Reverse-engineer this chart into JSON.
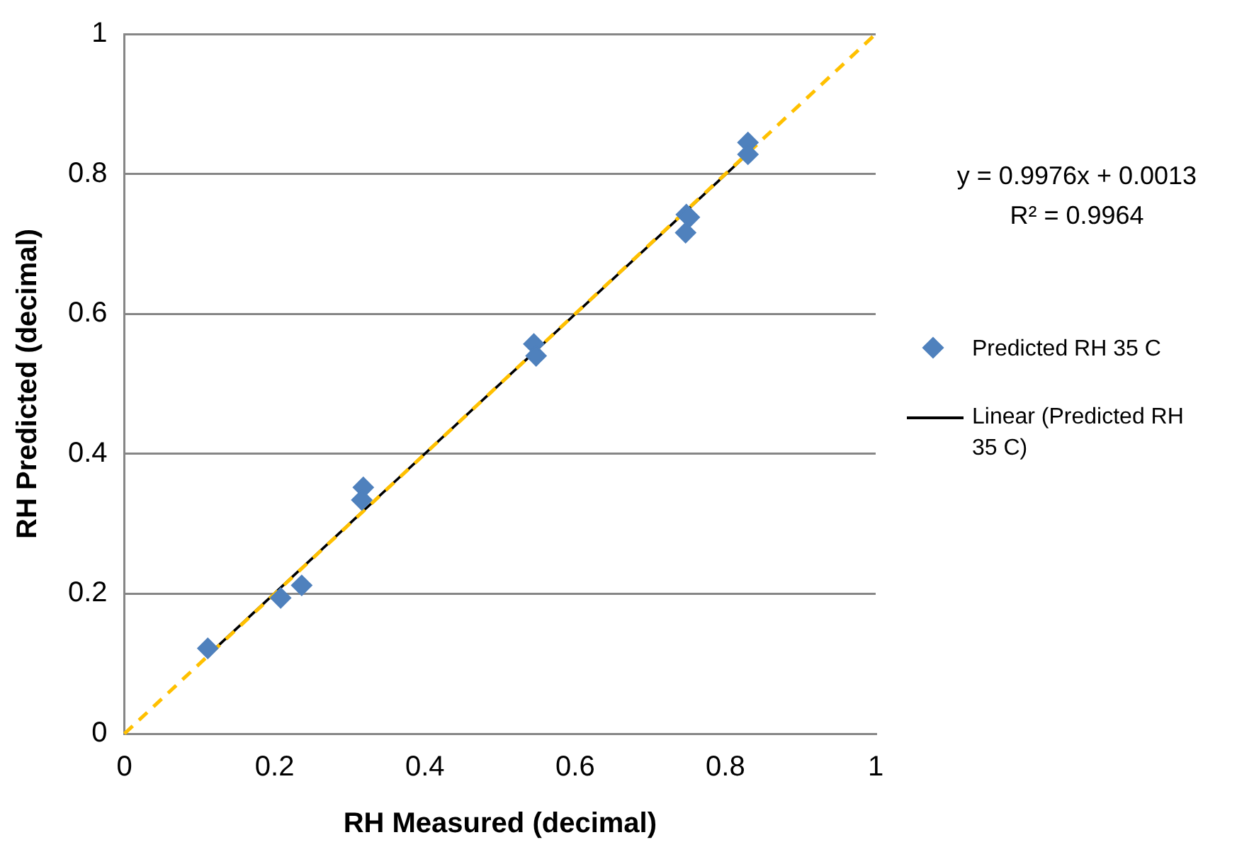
{
  "chart_data": {
    "type": "scatter",
    "xlabel": "RH Measured (decimal)",
    "ylabel": "RH Predicted (decimal)",
    "xlim": [
      0,
      1
    ],
    "xticks": [
      0,
      0.2,
      0.4,
      0.6,
      0.8,
      1
    ],
    "ylim": [
      0,
      1
    ],
    "yticks": [
      0,
      0.2,
      0.4,
      0.6,
      0.8,
      1
    ],
    "grid": "y",
    "legend": "right",
    "annotations": [
      "y = 0.9976x + 0.0013",
      "R² = 0.9964"
    ],
    "series": [
      {
        "type": "line",
        "color": "#ffc000",
        "line_style": "dashed",
        "marker": "none",
        "x": [
          0,
          1
        ],
        "values": [
          0,
          1
        ]
      },
      {
        "type": "scatter",
        "name": "Predicted RH  35 C",
        "color": "#4f81bd",
        "marker": "diamond",
        "x": [
          0.111,
          0.208,
          0.236,
          0.318,
          0.316,
          0.545,
          0.548,
          0.748,
          0.752,
          0.747,
          0.83,
          0.83
        ],
        "values": [
          0.122,
          0.194,
          0.212,
          0.352,
          0.334,
          0.557,
          0.54,
          0.742,
          0.738,
          0.716,
          0.845,
          0.828
        ]
      },
      {
        "type": "line",
        "name": "Linear (Predicted RH  35 C)",
        "color": "#000000",
        "line_style": "solid",
        "marker": "none",
        "x": [
          0.112,
          0.83
        ],
        "values": [
          0.113,
          0.829
        ]
      }
    ]
  }
}
